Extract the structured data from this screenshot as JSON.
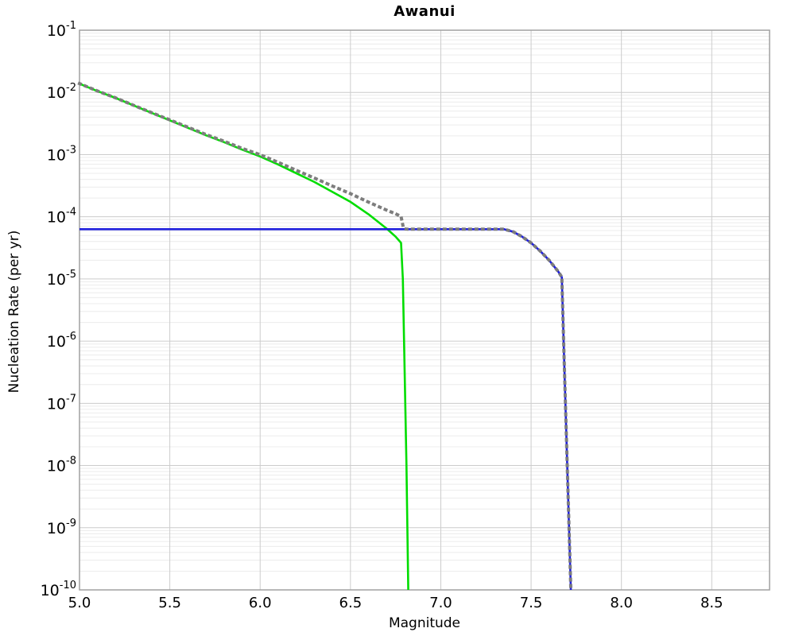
{
  "chart_data": {
    "type": "line",
    "title": "Awanui",
    "xlabel": "Magnitude",
    "ylabel": "Nucleation Rate (per yr)",
    "yscale": "log",
    "grid": "on",
    "legend": "none",
    "xlim": [
      5.0,
      8.82
    ],
    "ylim_log10": [
      -10,
      -1
    ],
    "x_ticks": {
      "values": [
        5.0,
        5.5,
        6.0,
        6.5,
        7.0,
        7.5,
        8.0,
        8.5
      ],
      "labels": [
        "5.0",
        "5.5",
        "6.0",
        "6.5",
        "7.0",
        "7.5",
        "8.0",
        "8.5"
      ]
    },
    "y_ticks": {
      "base": "10",
      "exponents": [
        "-1",
        "-2",
        "-3",
        "-4",
        "-5",
        "-6",
        "-7",
        "-8",
        "-9",
        "-10"
      ],
      "exponent_values": [
        -1,
        -2,
        -3,
        -4,
        -5,
        -6,
        -7,
        -8,
        -9,
        -10
      ]
    },
    "series": [
      {
        "name": "total-rate-dotted",
        "style": "dotted",
        "color": "#7d7d7d",
        "width": 4,
        "points_m_log10rate": [
          [
            5.0,
            -1.858
          ],
          [
            5.1,
            -1.978
          ],
          [
            5.2,
            -2.088
          ],
          [
            5.3,
            -2.208
          ],
          [
            5.4,
            -2.327
          ],
          [
            5.5,
            -2.442
          ],
          [
            5.6,
            -2.56
          ],
          [
            5.7,
            -2.677
          ],
          [
            5.8,
            -2.785
          ],
          [
            5.9,
            -2.9
          ],
          [
            6.0,
            -3.002
          ],
          [
            6.1,
            -3.125
          ],
          [
            6.2,
            -3.253
          ],
          [
            6.3,
            -3.377
          ],
          [
            6.4,
            -3.506
          ],
          [
            6.5,
            -3.628
          ],
          [
            6.6,
            -3.765
          ],
          [
            6.7,
            -3.893
          ],
          [
            6.75,
            -3.952
          ],
          [
            6.78,
            -3.996
          ],
          [
            6.79,
            -4.136
          ],
          [
            6.8,
            -4.196
          ],
          [
            6.82,
            -4.2
          ],
          [
            7.35,
            -4.2
          ],
          [
            7.4,
            -4.24
          ],
          [
            7.45,
            -4.32
          ],
          [
            7.5,
            -4.42
          ],
          [
            7.55,
            -4.55
          ],
          [
            7.6,
            -4.7
          ],
          [
            7.65,
            -4.88
          ],
          [
            7.67,
            -4.97
          ],
          [
            7.68,
            -6.0
          ],
          [
            7.7,
            -8.0
          ],
          [
            7.72,
            -10.0
          ]
        ]
      },
      {
        "name": "background-rate-green",
        "style": "solid",
        "color": "#00dd00",
        "width": 2.6,
        "points_m_log10rate": [
          [
            5.0,
            -1.86
          ],
          [
            5.1,
            -1.98
          ],
          [
            5.2,
            -2.09
          ],
          [
            5.3,
            -2.21
          ],
          [
            5.4,
            -2.33
          ],
          [
            5.5,
            -2.45
          ],
          [
            5.6,
            -2.57
          ],
          [
            5.7,
            -2.69
          ],
          [
            5.8,
            -2.8
          ],
          [
            5.9,
            -2.92
          ],
          [
            6.0,
            -3.03
          ],
          [
            6.1,
            -3.16
          ],
          [
            6.2,
            -3.3
          ],
          [
            6.3,
            -3.44
          ],
          [
            6.4,
            -3.6
          ],
          [
            6.5,
            -3.76
          ],
          [
            6.6,
            -3.96
          ],
          [
            6.7,
            -4.19
          ],
          [
            6.75,
            -4.32
          ],
          [
            6.78,
            -4.42
          ],
          [
            6.79,
            -5.0
          ],
          [
            6.8,
            -6.5
          ],
          [
            6.81,
            -8.0
          ],
          [
            6.82,
            -10.0
          ]
        ]
      },
      {
        "name": "characteristic-rate-blue",
        "style": "solid",
        "color": "#2020dd",
        "width": 2.6,
        "points_m_log10rate": [
          [
            5.0,
            -4.2
          ],
          [
            7.35,
            -4.2
          ],
          [
            7.4,
            -4.24
          ],
          [
            7.45,
            -4.32
          ],
          [
            7.5,
            -4.42
          ],
          [
            7.55,
            -4.55
          ],
          [
            7.6,
            -4.7
          ],
          [
            7.65,
            -4.88
          ],
          [
            7.67,
            -4.97
          ],
          [
            7.68,
            -6.0
          ],
          [
            7.7,
            -8.0
          ],
          [
            7.72,
            -10.0
          ]
        ]
      }
    ],
    "colors": {
      "background": "#ffffff",
      "frame": "#a0a0a0",
      "grid_major": "#cccccc",
      "grid_minor": "#ececec",
      "text": "#000000"
    }
  }
}
